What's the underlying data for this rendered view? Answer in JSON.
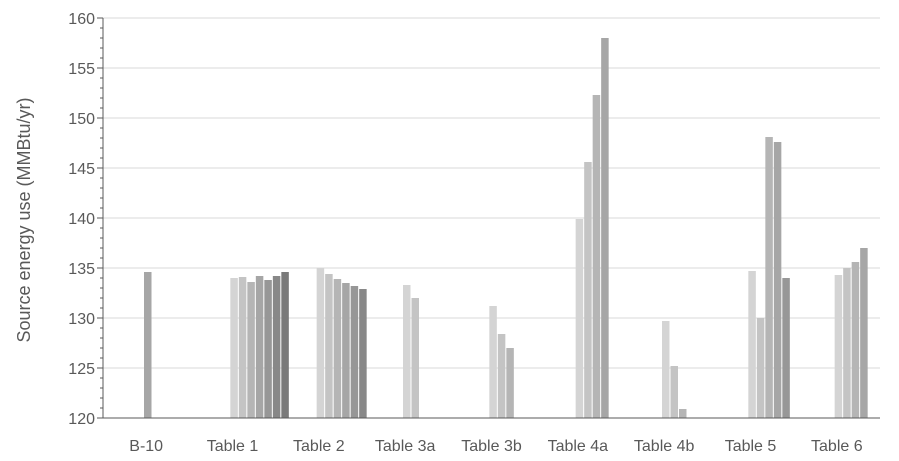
{
  "chart_data": {
    "type": "bar",
    "ylabel": "Source energy use (MMBtu/yr)",
    "xlabel": "",
    "ylim": [
      120,
      160
    ],
    "yticks": [
      120,
      125,
      130,
      135,
      140,
      145,
      150,
      155,
      160
    ],
    "grid": true,
    "categories": [
      "B-10",
      "Table 1",
      "Table 2",
      "Table 3a",
      "Table 3b",
      "Table 4a",
      "Table 4b",
      "Table 5",
      "Table 6"
    ],
    "groups": [
      {
        "category": "B-10",
        "values": [
          134.6
        ]
      },
      {
        "category": "Table 1",
        "values": [
          134.0,
          134.1,
          133.6,
          134.2,
          133.8,
          134.2,
          134.6
        ]
      },
      {
        "category": "Table 2",
        "values": [
          135.0,
          134.4,
          133.9,
          133.5,
          133.2,
          132.9
        ]
      },
      {
        "category": "Table 3a",
        "values": [
          133.3,
          132.0
        ]
      },
      {
        "category": "Table 3b",
        "values": [
          131.2,
          128.4,
          127.0
        ]
      },
      {
        "category": "Table 4a",
        "values": [
          139.9,
          145.6,
          152.3,
          158.0
        ]
      },
      {
        "category": "Table 4b",
        "values": [
          129.7,
          125.2,
          120.9
        ]
      },
      {
        "category": "Table 5",
        "values": [
          134.7,
          130.0,
          148.1,
          147.6,
          134.0
        ]
      },
      {
        "category": "Table 6",
        "values": [
          134.3,
          135.0,
          135.6,
          137.0
        ]
      }
    ],
    "colors": {
      "bars": [
        "#a6a6a6",
        "#d4d4d4",
        "#c4c4c4",
        "#b5b5b5",
        "#a6a6a6",
        "#979797",
        "#888888",
        "#7a7a7a"
      ],
      "grid": "#d9d9d9",
      "axis": "#595959",
      "text": "#595959"
    }
  }
}
